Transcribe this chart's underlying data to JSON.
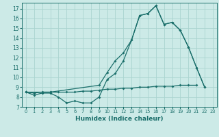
{
  "title": "",
  "xlabel": "Humidex (Indice chaleur)",
  "bg_color": "#cceae7",
  "grid_color": "#aad4d0",
  "line_color": "#1a6e6a",
  "xlim": [
    -0.5,
    23.5
  ],
  "ylim": [
    7,
    17.6
  ],
  "yticks": [
    7,
    8,
    9,
    10,
    11,
    12,
    13,
    14,
    15,
    16,
    17
  ],
  "xticks": [
    0,
    1,
    2,
    3,
    4,
    5,
    6,
    7,
    8,
    9,
    10,
    11,
    12,
    13,
    14,
    15,
    16,
    17,
    18,
    19,
    20,
    21,
    22,
    23
  ],
  "line1_x": [
    0,
    1,
    2,
    3,
    4,
    5,
    6,
    7,
    8,
    9,
    10,
    11,
    12,
    13,
    14,
    15,
    16,
    17,
    18,
    19,
    20,
    21,
    22
  ],
  "line1_y": [
    8.5,
    8.2,
    8.4,
    8.4,
    8.0,
    7.4,
    7.6,
    7.4,
    7.4,
    8.0,
    9.8,
    10.4,
    11.7,
    13.8,
    16.3,
    16.5,
    17.3,
    15.4,
    15.6,
    14.8,
    13.1,
    11.0,
    9.0
  ],
  "line2_x": [
    0,
    1,
    2,
    3,
    4,
    5,
    6,
    7,
    8,
    9,
    10,
    11,
    12,
    13,
    14,
    15,
    16,
    17,
    18,
    19,
    20,
    21
  ],
  "line2_y": [
    8.5,
    8.4,
    8.5,
    8.5,
    8.5,
    8.5,
    8.5,
    8.6,
    8.6,
    8.7,
    8.8,
    8.8,
    8.9,
    8.9,
    9.0,
    9.0,
    9.1,
    9.1,
    9.1,
    9.2,
    9.2,
    9.2
  ],
  "line3_x": [
    0,
    3,
    9,
    10,
    11,
    12,
    13,
    14,
    15,
    16,
    17,
    18,
    19,
    20,
    21,
    22
  ],
  "line3_y": [
    8.5,
    8.5,
    9.2,
    10.5,
    11.7,
    12.5,
    13.8,
    16.3,
    16.5,
    17.3,
    15.4,
    15.6,
    14.8,
    13.1,
    11.0,
    9.0
  ]
}
